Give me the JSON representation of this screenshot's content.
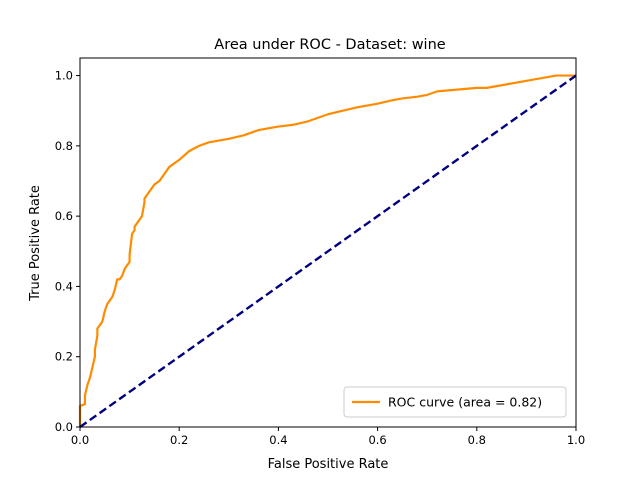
{
  "chart_data": {
    "type": "line",
    "title": "Area under ROC - Dataset: wine",
    "xlabel": "False Positive Rate",
    "ylabel": "True Positive Rate",
    "xlim": [
      0.0,
      1.0
    ],
    "ylim": [
      0.0,
      1.05
    ],
    "x_ticks": [
      "0.0",
      "0.2",
      "0.4",
      "0.6",
      "0.8",
      "1.0"
    ],
    "y_ticks": [
      "0.0",
      "0.2",
      "0.4",
      "0.6",
      "0.8",
      "1.0"
    ],
    "grid": false,
    "legend_position": "lower-right",
    "series": [
      {
        "name": "ROC curve (area = 0.82)",
        "color": "#ff8c00",
        "style": "solid",
        "x": [
          0.0,
          0.0,
          0.01,
          0.01,
          0.015,
          0.02,
          0.025,
          0.03,
          0.03,
          0.035,
          0.035,
          0.04,
          0.045,
          0.05,
          0.055,
          0.06,
          0.065,
          0.07,
          0.075,
          0.08,
          0.085,
          0.09,
          0.095,
          0.1,
          0.1,
          0.105,
          0.11,
          0.11,
          0.12,
          0.125,
          0.13,
          0.13,
          0.14,
          0.15,
          0.16,
          0.17,
          0.18,
          0.2,
          0.22,
          0.24,
          0.26,
          0.28,
          0.3,
          0.33,
          0.36,
          0.4,
          0.43,
          0.46,
          0.5,
          0.53,
          0.56,
          0.6,
          0.63,
          0.65,
          0.68,
          0.7,
          0.72,
          0.76,
          0.8,
          0.82,
          0.86,
          0.9,
          0.92,
          0.94,
          0.96,
          1.0
        ],
        "y": [
          0.0,
          0.06,
          0.065,
          0.09,
          0.12,
          0.14,
          0.17,
          0.2,
          0.22,
          0.26,
          0.28,
          0.29,
          0.3,
          0.33,
          0.35,
          0.36,
          0.37,
          0.39,
          0.42,
          0.42,
          0.43,
          0.45,
          0.46,
          0.47,
          0.49,
          0.55,
          0.56,
          0.57,
          0.59,
          0.6,
          0.64,
          0.65,
          0.67,
          0.69,
          0.7,
          0.72,
          0.74,
          0.76,
          0.785,
          0.8,
          0.81,
          0.815,
          0.82,
          0.83,
          0.845,
          0.855,
          0.86,
          0.87,
          0.89,
          0.9,
          0.91,
          0.92,
          0.93,
          0.935,
          0.94,
          0.945,
          0.955,
          0.96,
          0.965,
          0.965,
          0.975,
          0.985,
          0.99,
          0.995,
          1.0,
          1.0
        ]
      },
      {
        "name": "",
        "color": "#000080",
        "style": "dashed",
        "x": [
          0.0,
          1.0
        ],
        "y": [
          0.0,
          1.0
        ]
      }
    ]
  }
}
